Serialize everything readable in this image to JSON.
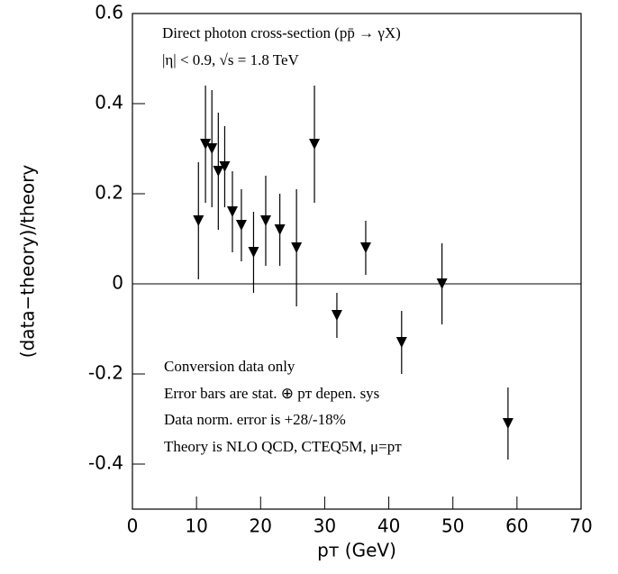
{
  "chart_data": {
    "type": "scatter",
    "xlabel": "pᴛ (GeV)",
    "ylabel": "(data−theory)/theory",
    "annotations": [
      "Direct photon cross-section (pp̄ → γX)",
      "|η| < 0.9, √s = 1.8 TeV",
      "Conversion data only",
      "Error bars are stat. ⊕ pᴛ depen. sys",
      "Data norm. error is +28/-18%",
      "Theory is NLO QCD, CTEQ5M, μ=pᴛ"
    ],
    "x": [
      10.3,
      11.4,
      12.4,
      13.4,
      14.4,
      15.6,
      17.0,
      18.9,
      20.8,
      23.0,
      25.6,
      28.4,
      31.9,
      36.4,
      42.0,
      48.3,
      58.6
    ],
    "series": [
      {
        "color": "#000000",
        "values": [
          0.14,
          0.31,
          0.3,
          0.25,
          0.26,
          0.16,
          0.13,
          0.07,
          0.14,
          0.12,
          0.08,
          0.31,
          -0.07,
          0.08,
          -0.13,
          0.0,
          -0.31
        ],
        "errors": [
          0.13,
          0.13,
          0.13,
          0.13,
          0.09,
          0.09,
          0.08,
          0.09,
          0.1,
          0.08,
          0.13,
          0.13,
          0.05,
          0.06,
          0.07,
          0.09,
          0.08
        ]
      }
    ],
    "xlim": [
      0,
      70
    ],
    "xticks": [
      0,
      10,
      20,
      30,
      40,
      50,
      60,
      70
    ],
    "ylim": [
      -0.5,
      0.6
    ],
    "yticks": [
      -0.4,
      -0.2,
      0,
      0.2,
      0.4,
      0.6
    ],
    "hline": 0
  }
}
